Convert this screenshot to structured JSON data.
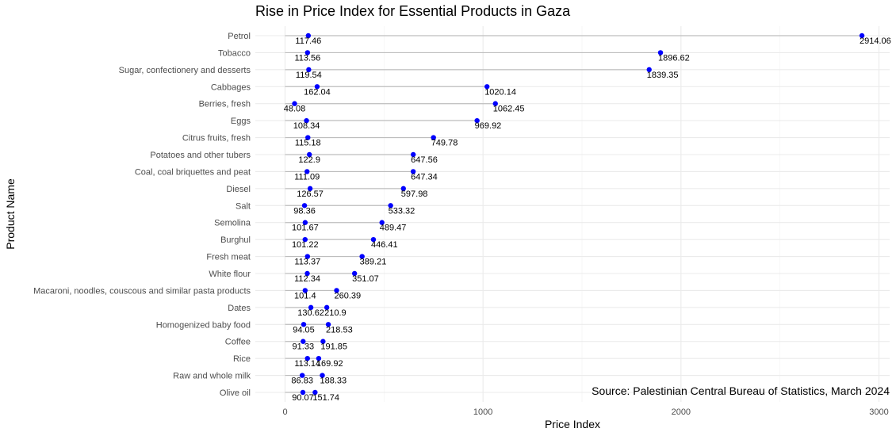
{
  "chart_data": {
    "type": "dumbbell",
    "title": "Rise in Price Index for Essential Products in Gaza",
    "xlabel": "Price Index",
    "ylabel": "Product Name",
    "xlim": [
      -40,
      3060
    ],
    "xticks": [
      0,
      1000,
      2000,
      3000
    ],
    "grid": true,
    "legend": "none",
    "caption": "Source: Palestinian Central Bureau of Statistics, March 2024",
    "colors": {
      "point": "#0000ff",
      "segment": "#bebebe",
      "grid": "#ebebeb"
    },
    "categories": [
      "Petrol",
      "Tobacco",
      "Sugar, confectionery and desserts",
      "Cabbages",
      "Berries, fresh",
      "Eggs",
      "Citrus fruits, fresh",
      "Potatoes and other tubers",
      "Coal, coal briquettes and peat",
      "Diesel",
      "Salt",
      "Semolina",
      "Burghul",
      "Fresh meat",
      "White flour",
      "Macaroni, noodles, couscous and similar pasta products",
      "Dates",
      "Homogenized baby food",
      "Coffee",
      "Rice",
      "Raw and whole milk",
      "Olive oil"
    ],
    "series": [
      {
        "values": [
          117.46,
          113.56,
          119.54,
          162.04,
          48.08,
          108.34,
          115.18,
          122.9,
          111.09,
          126.57,
          98.36,
          101.67,
          101.22,
          113.37,
          112.34,
          101.4,
          130.62,
          94.05,
          91.33,
          113.14,
          86.83,
          90.07
        ],
        "labels": [
          "117.46",
          "113.56",
          "119.54",
          "162.04",
          "48.08",
          "108.34",
          "115.18",
          "122.9",
          "111.09",
          "126.57",
          "98.36",
          "101.67",
          "101.22",
          "113.37",
          "112.34",
          "101.4",
          "130.62",
          "94.05",
          "91.33",
          "113.14",
          "86.83",
          "90.07"
        ]
      },
      {
        "values": [
          2914.06,
          1896.62,
          1839.35,
          1020.14,
          1062.45,
          969.92,
          749.78,
          647.56,
          647.34,
          597.98,
          533.32,
          489.47,
          446.41,
          389.21,
          351.07,
          260.39,
          210.9,
          218.53,
          191.85,
          169.92,
          188.33,
          151.74
        ],
        "labels": [
          "2914.06",
          "1896.62",
          "1839.35",
          "1020.14",
          "1062.45",
          "969.92",
          "749.78",
          "647.56",
          "647.34",
          "597.98",
          "533.32",
          "489.47",
          "446.41",
          "389.21",
          "351.07",
          "260.39",
          "210.9",
          "218.53",
          "191.85",
          "169.92",
          "188.33",
          "151.74"
        ]
      }
    ]
  }
}
